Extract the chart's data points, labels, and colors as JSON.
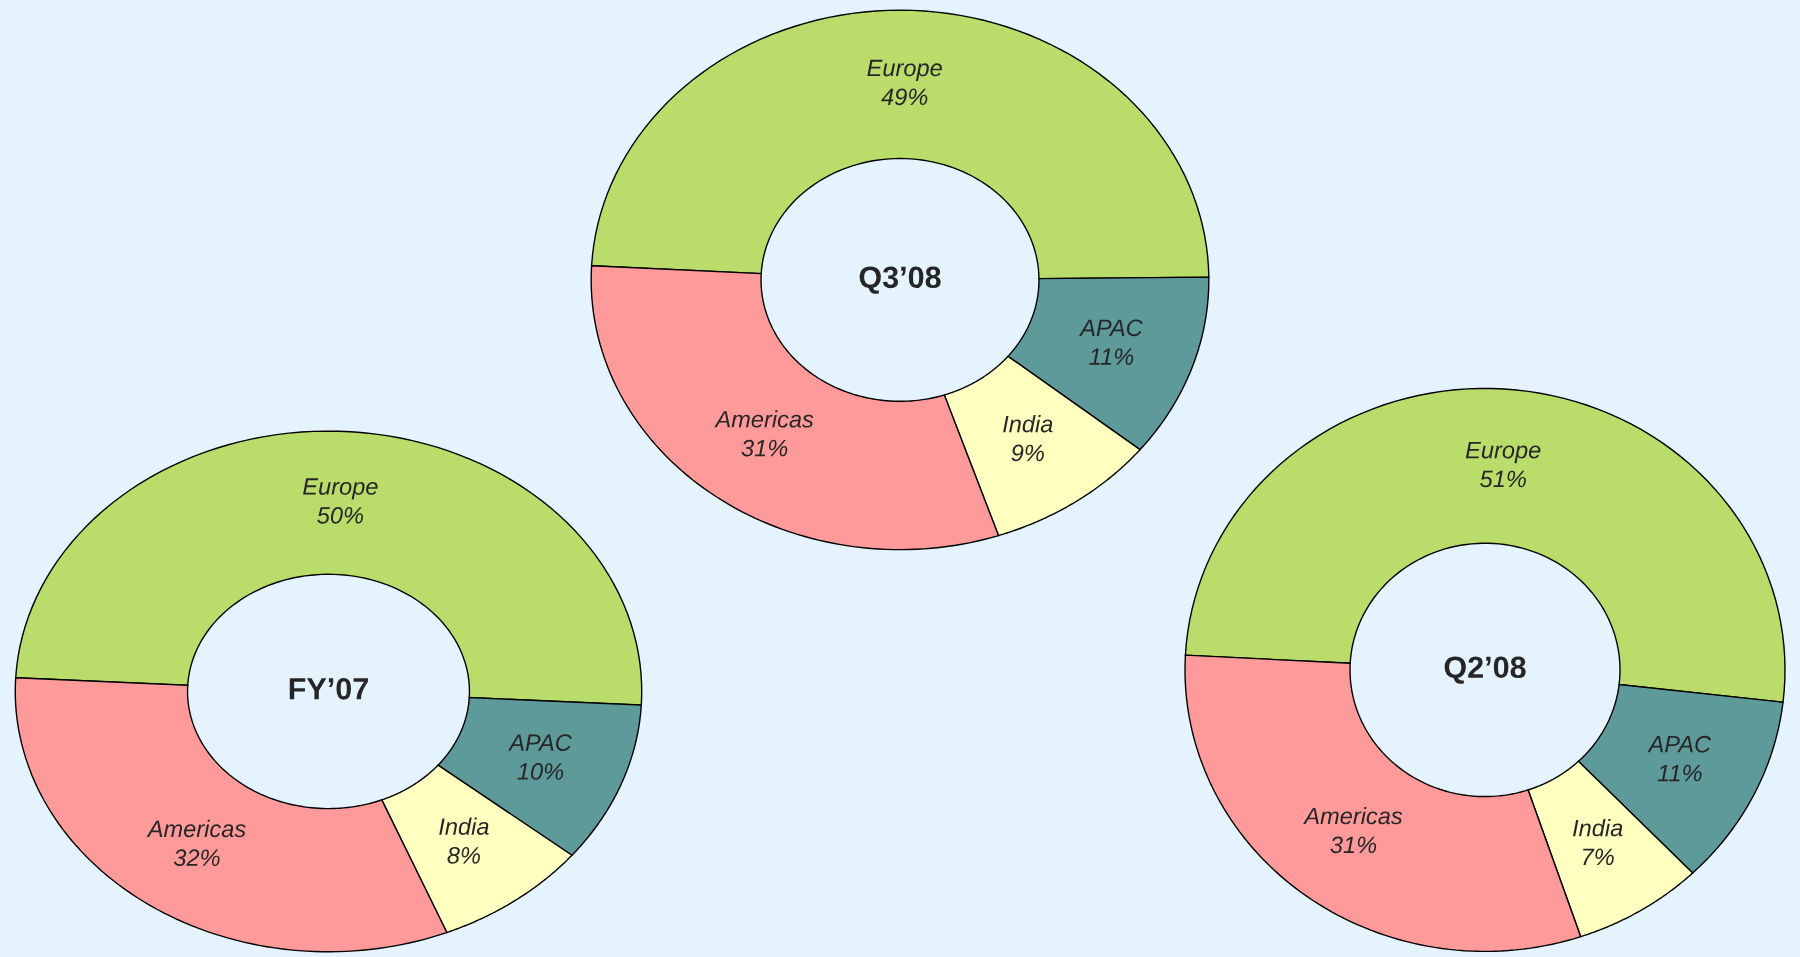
{
  "chart_data": [
    {
      "type": "donut",
      "title": "Q3’08",
      "categories": [
        "Europe",
        "APAC",
        "India",
        "Americas"
      ],
      "values": [
        49,
        11,
        9,
        31
      ],
      "value_labels": [
        "49%",
        "11%",
        "9%",
        "31%"
      ],
      "colors": [
        "#b9dc6a",
        "#5f9a9a",
        "#ffffc0",
        "#ff9a9a"
      ]
    },
    {
      "type": "donut",
      "title": "FY’07",
      "categories": [
        "Europe",
        "APAC",
        "India",
        "Americas"
      ],
      "values": [
        50,
        10,
        8,
        32
      ],
      "value_labels": [
        "50%",
        "10%",
        "8%",
        "32%"
      ],
      "colors": [
        "#b9dc6a",
        "#5f9a9a",
        "#ffffc0",
        "#ff9a9a"
      ]
    },
    {
      "type": "donut",
      "title": "Q2’08",
      "categories": [
        "Europe",
        "APAC",
        "India",
        "Americas"
      ],
      "values": [
        51,
        11,
        7,
        31
      ],
      "value_labels": [
        "51%",
        "11%",
        "7%",
        "31%"
      ],
      "colors": [
        "#b9dc6a",
        "#5f9a9a",
        "#ffffc0",
        "#ff9a9a"
      ]
    }
  ]
}
